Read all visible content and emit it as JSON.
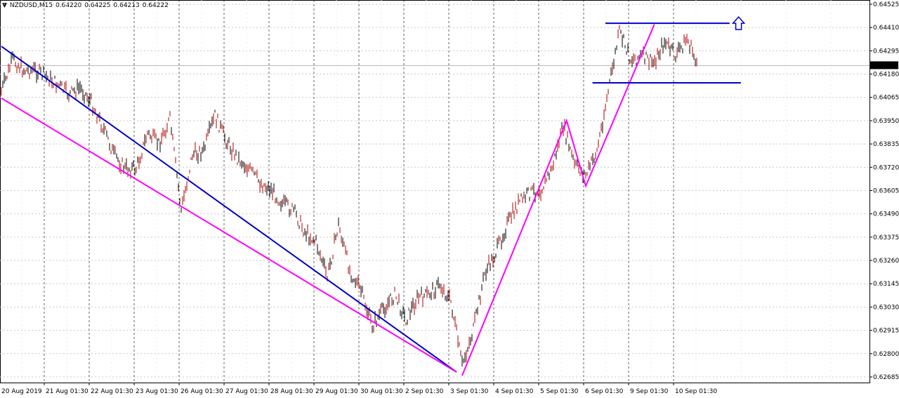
{
  "header": {
    "symbol": "NZDUSD,M15",
    "open": "0.64220",
    "high": "0.64225",
    "low": "0.64213",
    "close": "0.64222"
  },
  "chart_data": {
    "type": "line",
    "title": "NZDUSD,M15",
    "grid": true,
    "ylim": [
      0.6266,
      0.6453
    ],
    "y_ticks": [
      "0.64525",
      "0.64410",
      "0.64295",
      "0.64180",
      "0.64065",
      "0.63950",
      "0.63835",
      "0.63720",
      "0.63605",
      "0.63490",
      "0.63375",
      "0.63260",
      "0.63145",
      "0.63030",
      "0.62915",
      "0.62800",
      "0.62685"
    ],
    "x_ticks": [
      "20 Aug 2019",
      "21 Aug 01:30",
      "22 Aug 01:30",
      "23 Aug 01:30",
      "26 Aug 01:30",
      "27 Aug 01:30",
      "28 Aug 01:30",
      "29 Aug 01:30",
      "30 Aug 01:30",
      "2 Sep 01:30",
      "3 Sep 01:30",
      "4 Sep 01:30",
      "5 Sep 01:30",
      "6 Sep 01:30",
      "9 Sep 01:30",
      "10 Sep 01:30"
    ],
    "current_price": "0.64222",
    "series": [
      {
        "color": "#8b0000",
        "values": [
          0.64095,
          0.64251,
          0.64199,
          0.64199,
          0.64165,
          0.6413,
          0.64078,
          0.64113,
          0.64043,
          0.63922,
          0.63784,
          0.63714,
          0.63714,
          0.63887,
          0.63836,
          0.63957,
          0.63506,
          0.63784,
          0.63801,
          0.63974,
          0.63853,
          0.63766,
          0.63714,
          0.63645,
          0.6361,
          0.63541,
          0.63506,
          0.63402,
          0.6335,
          0.63177,
          0.63437,
          0.63212,
          0.63108,
          0.62935,
          0.63021,
          0.63091,
          0.62969,
          0.63073,
          0.63091,
          0.63142,
          0.63056,
          0.62744,
          0.62917,
          0.63194,
          0.63298,
          0.63437,
          0.63541,
          0.63593,
          0.6361,
          0.63714,
          0.63922,
          0.63732,
          0.6368,
          0.63801,
          0.64095,
          0.6439,
          0.64251,
          0.64269,
          0.64234,
          0.64338,
          0.64269,
          0.64355,
          0.64222
        ]
      }
    ],
    "annotations": [
      {
        "kind": "trendline",
        "color": "#0000cc",
        "points": [
          [
            0,
            0.64317
          ],
          [
            40.5,
            0.62709
          ]
        ]
      },
      {
        "kind": "trendline",
        "color": "#ff00ff",
        "points": [
          [
            0,
            0.64061
          ],
          [
            40.5,
            0.62709
          ]
        ]
      },
      {
        "kind": "zigzag",
        "color": "#ff00ff",
        "points": [
          [
            41,
            0.62692
          ],
          [
            50.3,
            0.6395
          ],
          [
            52,
            0.63628
          ],
          [
            58.1,
            0.64425
          ]
        ]
      },
      {
        "kind": "resistance",
        "color": "#0000cc",
        "points": [
          [
            53.75,
            0.64431
          ],
          [
            64.8,
            0.64431
          ]
        ]
      },
      {
        "kind": "support",
        "color": "#0000cc",
        "points": [
          [
            52.6,
            0.64137
          ],
          [
            65.8,
            0.64137
          ]
        ]
      },
      {
        "kind": "arrow-up",
        "color": "#0000cc",
        "points": [
          [
            65.6,
            0.64431
          ]
        ]
      }
    ]
  }
}
